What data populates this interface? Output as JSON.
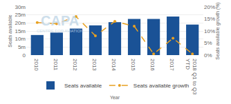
{
  "chart_data": {
    "type": "bar",
    "categories": [
      "2010",
      "2011",
      "2012",
      "2013",
      "2014",
      "2015",
      "2016",
      "2017",
      "2018 Q1 to Q3\nYTD"
    ],
    "series": [
      {
        "name": "Seats available",
        "type": "bar",
        "color": "#1a5296",
        "values": [
          12.5,
          14.0,
          16.5,
          18.5,
          20.5,
          22.5,
          22.5,
          24.0,
          19.0
        ]
      },
      {
        "name": "Seats available growth",
        "type": "line",
        "axis": "y2",
        "color": "#e8a020",
        "line_style": "dashed",
        "marker": "circle",
        "values": [
          13.5,
          13.0,
          16.0,
          8.0,
          14.0,
          12.0,
          0.5,
          7.0,
          0.5
        ]
      }
    ],
    "xlabel": "Year",
    "ylabel": "Seats available",
    "y2label": "Seats available growth (%)",
    "ylim": [
      0,
      30
    ],
    "yticks": [
      0,
      {
        "value": 5,
        "label": "5m"
      },
      {
        "value": 10,
        "label": "10m"
      },
      {
        "value": 15,
        "label": "15m"
      },
      {
        "value": 20,
        "label": "20m"
      },
      {
        "value": 25,
        "label": "25m"
      },
      {
        "value": 30,
        "label": "30m"
      }
    ],
    "y2lim": [
      0,
      20
    ],
    "y2ticks": [
      {
        "value": 0,
        "label": "0%"
      },
      {
        "value": 5,
        "label": "5%"
      },
      {
        "value": 10,
        "label": "10%"
      },
      {
        "value": 15,
        "label": "15%"
      },
      {
        "value": 20,
        "label": "20%"
      }
    ],
    "annotations": [
      "CAPA",
      "CENTRE FOR AVIATION"
    ],
    "grid": true,
    "legend": "bottom"
  }
}
